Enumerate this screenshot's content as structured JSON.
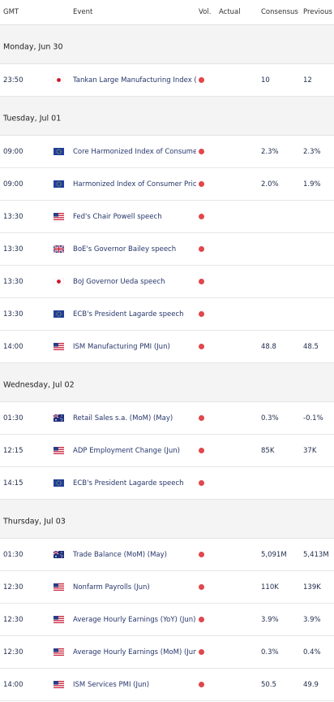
{
  "table": {
    "columns": [
      "GMT",
      "Event",
      "Vol.",
      "Actual",
      "Consensus",
      "Previous"
    ],
    "days": [
      {
        "date": "Monday, Jun 30",
        "events": [
          {
            "time": "23:50",
            "event": "Tankan Large Manufacturing Index (…",
            "consensus": "10",
            "previous": "12"
          }
        ]
      },
      {
        "date": "Tuesday, Jul 01",
        "events": [
          {
            "time": "09:00",
            "event": "Core Harmonized Index of Consumer…",
            "consensus": "2.3%",
            "previous": "2.3%"
          },
          {
            "time": "09:00",
            "event": "Harmonized Index of Consumer Price…",
            "consensus": "2.0%",
            "previous": "1.9%"
          },
          {
            "time": "13:30",
            "event": "Fed's Chair Powell speech"
          },
          {
            "time": "13:30",
            "event": "BoE's Governor Bailey speech"
          },
          {
            "time": "13:30",
            "event": "BoJ Governor Ueda speech"
          },
          {
            "time": "13:30",
            "event": "ECB's President Lagarde speech"
          },
          {
            "time": "14:00",
            "event": "ISM Manufacturing PMI (Jun)",
            "consensus": "48.8",
            "previous": "48.5"
          }
        ]
      },
      {
        "date": "Wednesday, Jul 02",
        "events": [
          {
            "time": "01:30",
            "event": "Retail Sales s.a. (MoM) (May)",
            "consensus": "0.3%",
            "previous": "-0.1%"
          },
          {
            "time": "12:15",
            "event": "ADP Employment Change (Jun)",
            "consensus": "85K",
            "previous": "37K"
          },
          {
            "time": "14:15",
            "event": "ECB's President Lagarde speech"
          }
        ]
      },
      {
        "date": "Thursday, Jul 03",
        "events": [
          {
            "time": "01:30",
            "event": "Trade Balance (MoM) (May)",
            "consensus": "5,091M",
            "previous": "5,413M"
          },
          {
            "time": "12:30",
            "event": "Nonfarm Payrolls (Jun)",
            "consensus": "110K",
            "previous": "139K"
          },
          {
            "time": "12:30",
            "event": "Average Hourly Earnings (YoY) (Jun)",
            "consensus": "3.9%",
            "previous": "3.9%"
          },
          {
            "time": "12:30",
            "event": "Average Hourly Earnings (MoM) (Jun)",
            "consensus": "0.3%",
            "previous": "0.4%"
          },
          {
            "time": "14:00",
            "event": "ISM Services PMI (Jun)",
            "consensus": "50.5",
            "previous": "49.9"
          }
        ]
      }
    ]
  }
}
